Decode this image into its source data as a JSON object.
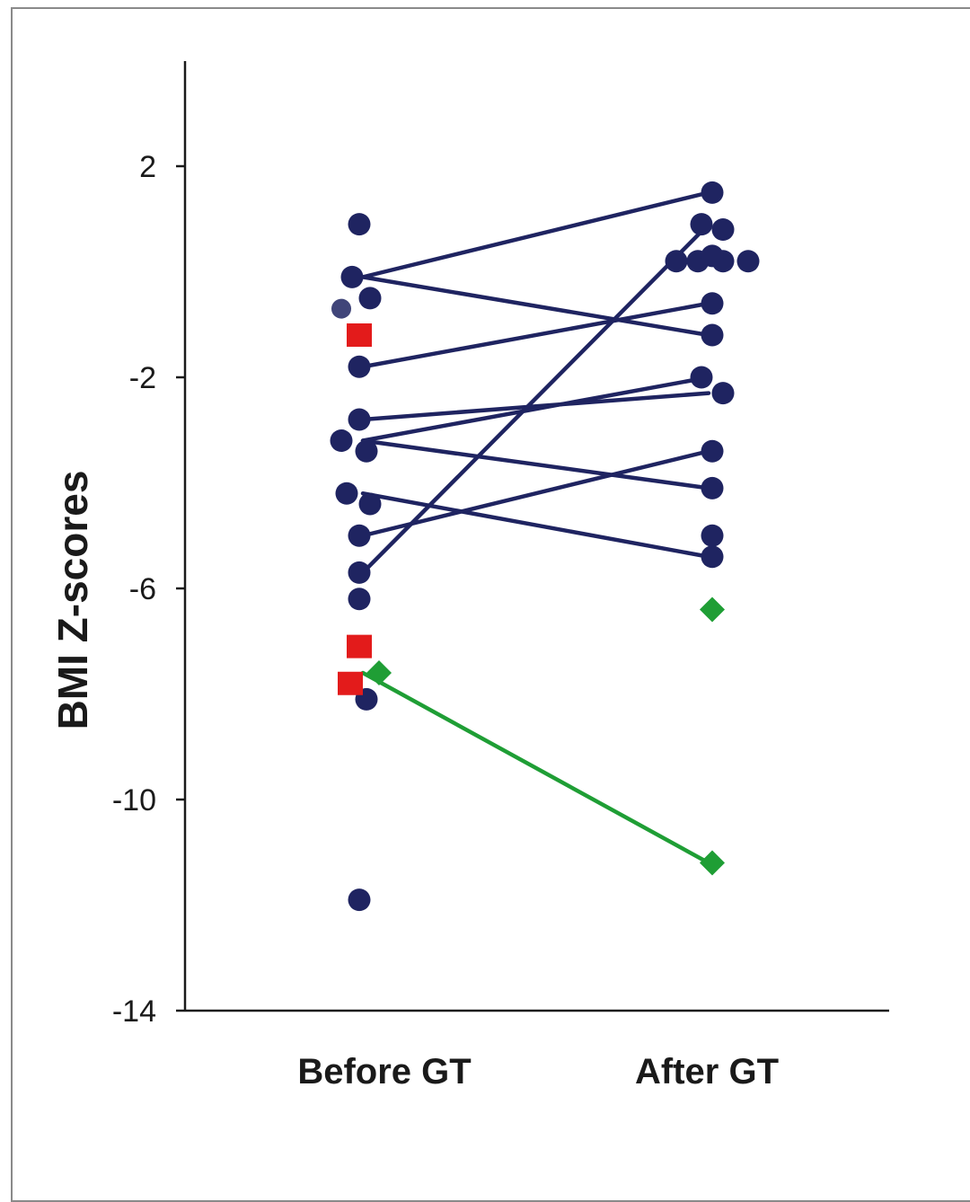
{
  "chart_data": {
    "type": "scatter",
    "title": "",
    "xlabel": "",
    "ylabel": "BMI  Z-scores",
    "categories": [
      "Before GT",
      "After GT"
    ],
    "ylim": [
      -14,
      4
    ],
    "yticks": [
      "2",
      "-2",
      "-6",
      "-10",
      "-14"
    ],
    "ytick_values": [
      2,
      -2,
      -6,
      -10,
      -14
    ],
    "grid": false,
    "legend": "none",
    "colors": {
      "navy": "#1f2461",
      "red": "#e31b1b",
      "green": "#1f9e35",
      "axis": "#1a1a1a"
    },
    "series": [
      {
        "marker": "circle",
        "color": "#1f2461",
        "before_values": [
          0.9,
          -0.1,
          -0.5,
          -1.8,
          -2.8,
          -3.2,
          -3.4,
          -4.2,
          -4.4,
          -5.0,
          -5.7,
          -6.2,
          -8.1,
          -11.9
        ],
        "after_values": [
          1.5,
          0.9,
          0.8,
          0.2,
          0.2,
          0.2,
          0.2,
          0.3,
          -0.6,
          -1.2,
          -2.0,
          -2.3,
          -3.4,
          -4.1,
          -5.0,
          -5.4
        ]
      },
      {
        "marker": "square",
        "color": "#e31b1b",
        "before_values": [
          -1.2,
          -7.1,
          -7.8
        ],
        "after_values": []
      },
      {
        "marker": "diamond",
        "color": "#1f9e35",
        "before_values": [
          -7.6
        ],
        "after_values": [
          -6.4,
          -11.2
        ]
      }
    ],
    "pairs": [
      {
        "before": -0.1,
        "after": 1.5,
        "color": "#1f2461"
      },
      {
        "before": -0.1,
        "after": -1.2,
        "color": "#1f2461"
      },
      {
        "before": -1.8,
        "after": -0.6,
        "color": "#1f2461"
      },
      {
        "before": -2.8,
        "after": -2.3,
        "color": "#1f2461"
      },
      {
        "before": -3.2,
        "after": -2.0,
        "color": "#1f2461"
      },
      {
        "before": -3.2,
        "after": -4.1,
        "color": "#1f2461"
      },
      {
        "before": -4.2,
        "after": -5.4,
        "color": "#1f2461"
      },
      {
        "before": -5.0,
        "after": -3.4,
        "color": "#1f2461"
      },
      {
        "before": -5.7,
        "after": 0.9,
        "color": "#1f2461"
      },
      {
        "before": -7.6,
        "after": -11.2,
        "color": "#1f9e35"
      }
    ]
  }
}
